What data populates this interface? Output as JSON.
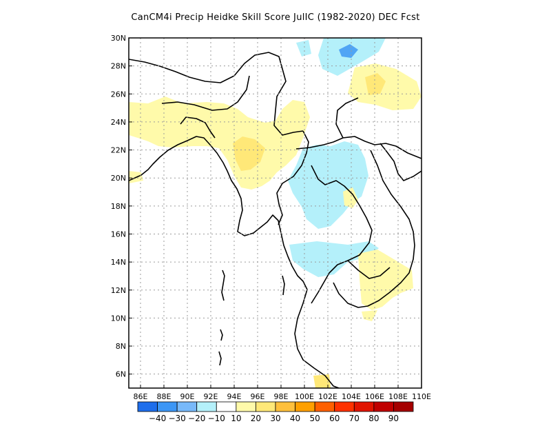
{
  "title": "CanCM4i Precip Heidke Skill Score JulIC (1982-2020) DEC Fcst",
  "map": {
    "lon_range": [
      85,
      110
    ],
    "lat_range": [
      5,
      30
    ],
    "lat_ticks": [
      {
        "value": 30,
        "label": "30N"
      },
      {
        "value": 28,
        "label": "28N"
      },
      {
        "value": 26,
        "label": "26N"
      },
      {
        "value": 24,
        "label": "24N"
      },
      {
        "value": 22,
        "label": "22N"
      },
      {
        "value": 20,
        "label": "20N"
      },
      {
        "value": 18,
        "label": "18N"
      },
      {
        "value": 16,
        "label": "16N"
      },
      {
        "value": 14,
        "label": "14N"
      },
      {
        "value": 12,
        "label": "12N"
      },
      {
        "value": 10,
        "label": "10N"
      },
      {
        "value": 8,
        "label": "8N"
      },
      {
        "value": 6,
        "label": "6N"
      }
    ],
    "lon_ticks": [
      {
        "value": 86,
        "label": "86E"
      },
      {
        "value": 88,
        "label": "88E"
      },
      {
        "value": 90,
        "label": "90E"
      },
      {
        "value": 92,
        "label": "92E"
      },
      {
        "value": 94,
        "label": "94E"
      },
      {
        "value": 96,
        "label": "96E"
      },
      {
        "value": 98,
        "label": "98E"
      },
      {
        "value": 100,
        "label": "100E"
      },
      {
        "value": 102,
        "label": "102E"
      },
      {
        "value": 104,
        "label": "104E"
      },
      {
        "value": 106,
        "label": "106E"
      },
      {
        "value": 108,
        "label": "108E"
      },
      {
        "value": 110,
        "label": "110E"
      }
    ],
    "grid": true,
    "colors": {
      "neg10_20": "#b4f0fa",
      "neg20_30": "#96d2fa",
      "neg30_40": "#50a5f5",
      "pos10_20": "#fffaaa",
      "pos20_30": "#ffe878",
      "pos30_40": "#ffc03c"
    }
  },
  "colorbar": {
    "colors": [
      "#1e6eeb",
      "#3c96f5",
      "#78b9fa",
      "#b4f0fa",
      "#ffffff",
      "#fffaaa",
      "#ffe878",
      "#ffc03c",
      "#ffa000",
      "#ff6000",
      "#ff3200",
      "#e11400",
      "#c00000",
      "#a50000"
    ],
    "labels": [
      "-40",
      "-30",
      "-20",
      "-10",
      "10",
      "20",
      "30",
      "40",
      "50",
      "60",
      "70",
      "80",
      "90"
    ]
  }
}
